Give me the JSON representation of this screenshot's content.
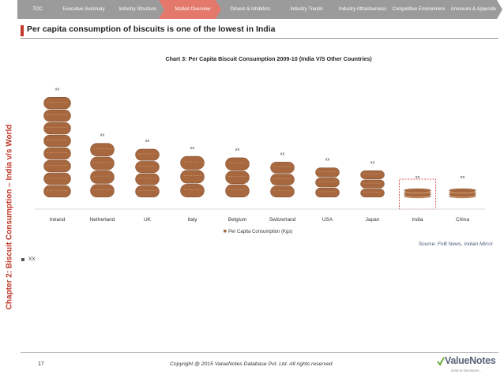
{
  "nav": {
    "tabs": [
      {
        "label": "TOC",
        "active": false
      },
      {
        "label": "Executive Summary",
        "active": false
      },
      {
        "label": "Industry Structure",
        "active": false
      },
      {
        "label": "Market Overview",
        "active": true
      },
      {
        "label": "Drivers & Inhibitors",
        "active": false
      },
      {
        "label": "Industry Trends",
        "active": false
      },
      {
        "label": "Industry Attractiveness",
        "active": false
      },
      {
        "label": "Competitive Environment",
        "active": false
      },
      {
        "label": "Annexure & Appendix",
        "active": false
      }
    ]
  },
  "chapter_label": "Chapter 2: Biscuit Consumption – India v/s World",
  "page_title": "Per capita consumption of biscuits is one of the lowest in India",
  "chart_data": {
    "type": "bar",
    "title": "Chart 3: Per Capita Biscuit Consumption 2009-10 (India V/S Other Countries)",
    "categories": [
      "Ireland",
      "Netherland",
      "UK",
      "Italy",
      "Belgium",
      "Switzerland",
      "USA",
      "Japan",
      "India",
      "China"
    ],
    "series": [
      {
        "name": "Per Capita Consumption (Kgs)",
        "values": [
          14.0,
          7.6,
          6.8,
          5.8,
          5.6,
          5.0,
          4.2,
          3.8,
          1.1,
          1.1
        ],
        "data_labels": [
          "xx",
          "xx",
          "xx",
          "xx",
          "xx",
          "xx",
          "xx",
          "xx",
          "xx",
          "xx"
        ]
      }
    ],
    "highlight_category": "India",
    "xlabel": "",
    "ylabel": "",
    "ylim": [
      0,
      16
    ],
    "grid": false,
    "legend": "bottom-center",
    "legend_label": "Per Capita Consumption (Kgs)",
    "bar_style": "stacked-biscuits"
  },
  "source_text": "Source: FnB News, Indian Mirror",
  "bullet_text": "XX",
  "footer": {
    "page_number": "17",
    "copyright": "Copyright @ 2015 ValueNotes Database Pvt. Ltd. All rights reserved"
  },
  "logo": {
    "name": "ValueNotes",
    "tagline": "Data to Decisions..."
  },
  "colors": {
    "accent": "#c0392b",
    "nav_grey": "#9b9b9b",
    "nav_active": "#e4796b",
    "biscuit": "#a8683f",
    "biscuit_dark": "#7a4525",
    "highlight_box": "#d32f2f"
  }
}
